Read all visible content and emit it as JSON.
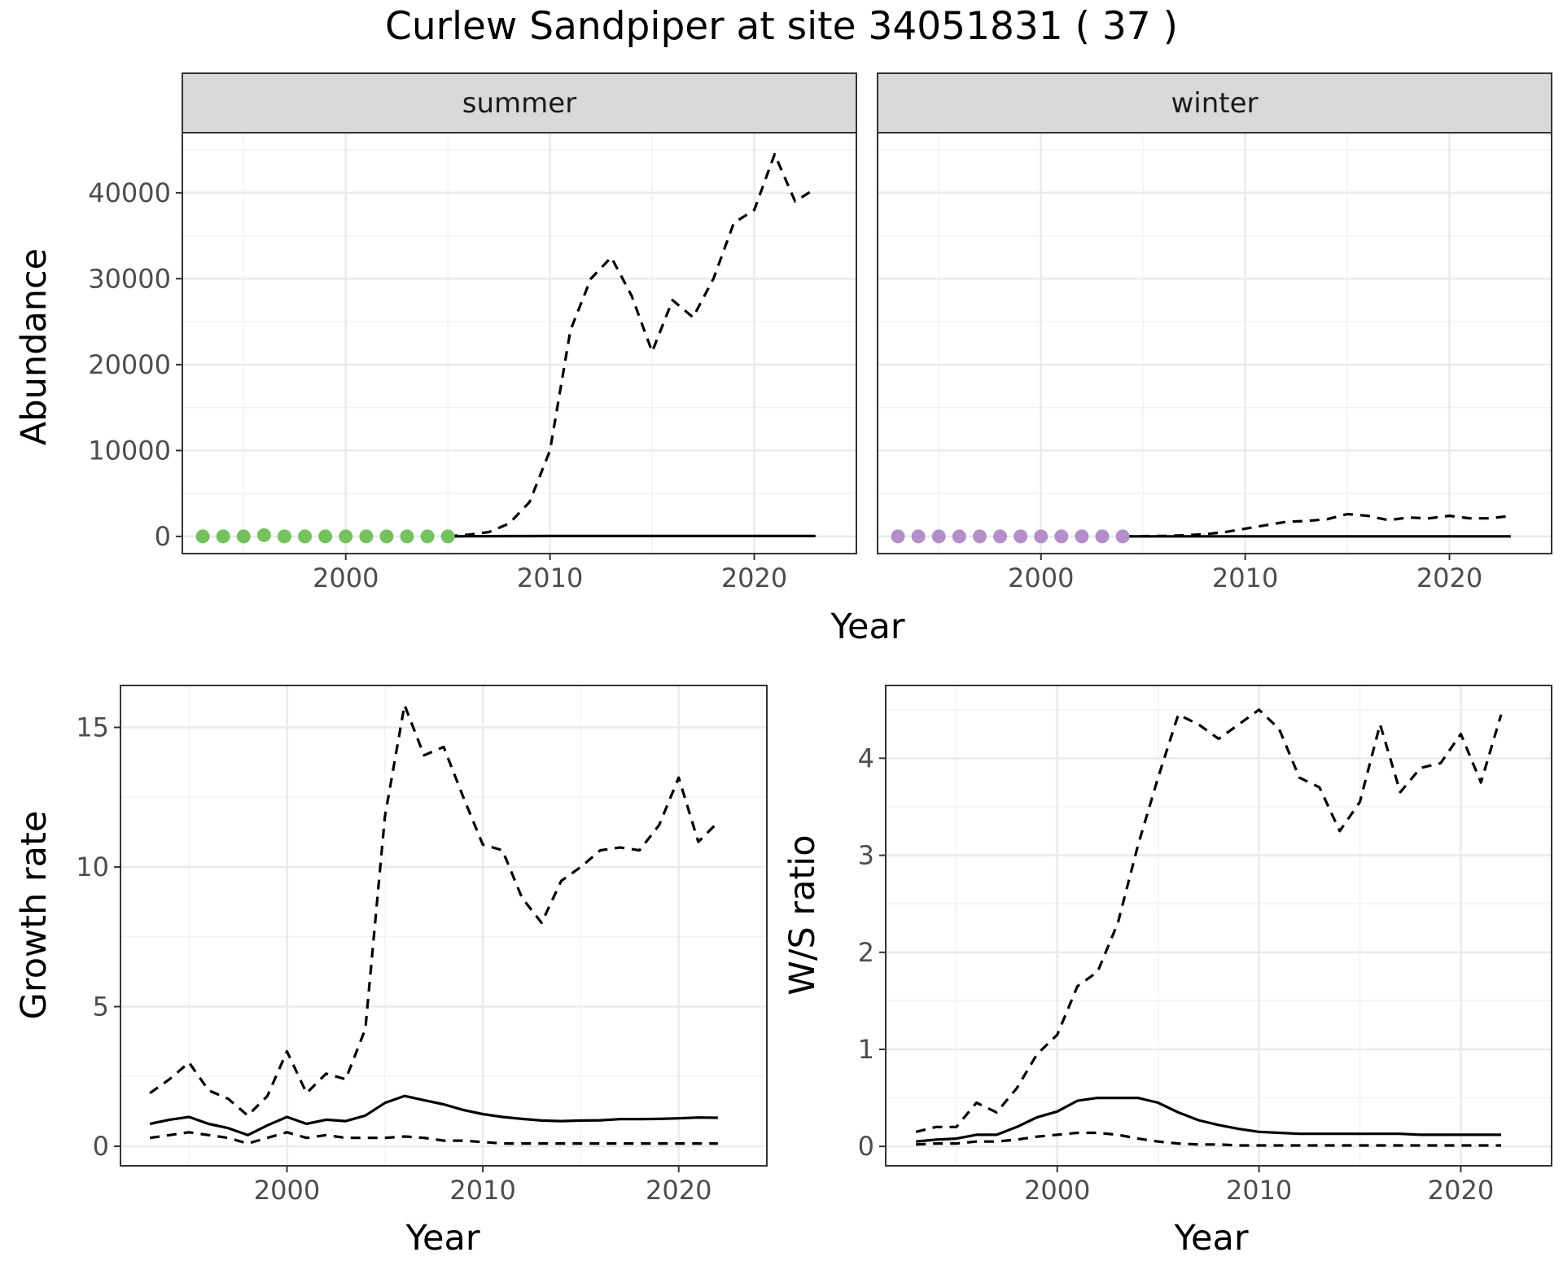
{
  "figure": {
    "title": "Curlew Sandpiper at site 34051831 ( 37 )"
  },
  "colors": {
    "summer_points": "#74c15e",
    "winter_points": "#b48ec8",
    "line": "#000000",
    "grid_major": "#ebebeb",
    "grid_minor": "#f2f2f2",
    "strip_fill": "#d9d9d9",
    "panel_border": "#333333"
  },
  "chart_data": [
    {
      "id": "abundance",
      "type": "line",
      "facets": [
        "summer",
        "winter"
      ],
      "xlabel": "Year",
      "ylabel": "Abundance",
      "xlim": [
        1992,
        2025
      ],
      "ylim": [
        -2000,
        47000
      ],
      "xticks": [
        2000,
        2010,
        2020
      ],
      "yticks": [
        0,
        10000,
        20000,
        30000,
        40000
      ],
      "grid": true,
      "panels": [
        {
          "facet": "summer",
          "points": {
            "x": [
              1993,
              1994,
              1995,
              1996,
              1997,
              1998,
              1999,
              2000,
              2001,
              2002,
              2003,
              2004,
              2005
            ],
            "y": [
              0,
              0,
              0,
              150,
              0,
              0,
              0,
              0,
              0,
              0,
              0,
              0,
              0
            ]
          },
          "series": [
            {
              "style": "solid",
              "x": [
                2005,
                2006,
                2007,
                2008,
                2009,
                2010,
                2011,
                2012,
                2013,
                2014,
                2015,
                2016,
                2017,
                2018,
                2019,
                2020,
                2021,
                2022,
                2023
              ],
              "y": [
                0,
                20,
                30,
                40,
                40,
                50,
                50,
                50,
                50,
                50,
                50,
                50,
                50,
                50,
                50,
                50,
                50,
                50,
                50
              ]
            },
            {
              "style": "dashed",
              "x": [
                2005,
                2006,
                2007,
                2008,
                2009,
                2010,
                2011,
                2012,
                2013,
                2014,
                2015,
                2016,
                2017,
                2018,
                2019,
                2020,
                2021,
                2022,
                2023
              ],
              "y": [
                0,
                200,
                500,
                1500,
                4000,
                10000,
                24000,
                30000,
                32500,
                28000,
                21500,
                27500,
                25500,
                30000,
                36500,
                38000,
                44500,
                39000,
                40500
              ]
            }
          ]
        },
        {
          "facet": "winter",
          "points": {
            "x": [
              1993,
              1994,
              1995,
              1996,
              1997,
              1998,
              1999,
              2000,
              2001,
              2002,
              2003,
              2004
            ],
            "y": [
              0,
              0,
              0,
              0,
              0,
              0,
              0,
              0,
              0,
              0,
              0,
              0
            ]
          },
          "series": [
            {
              "style": "solid",
              "x": [
                2004,
                2005,
                2006,
                2007,
                2008,
                2009,
                2010,
                2011,
                2012,
                2013,
                2014,
                2015,
                2016,
                2017,
                2018,
                2019,
                2020,
                2021,
                2022,
                2023
              ],
              "y": [
                0,
                5,
                5,
                5,
                5,
                5,
                5,
                5,
                5,
                5,
                5,
                5,
                5,
                5,
                5,
                5,
                5,
                5,
                5,
                5
              ]
            },
            {
              "style": "dashed",
              "x": [
                2004,
                2005,
                2006,
                2007,
                2008,
                2009,
                2010,
                2011,
                2012,
                2013,
                2014,
                2015,
                2016,
                2017,
                2018,
                2019,
                2020,
                2021,
                2022,
                2023
              ],
              "y": [
                0,
                30,
                60,
                120,
                250,
                500,
                900,
                1300,
                1700,
                1800,
                2000,
                2600,
                2400,
                1900,
                2200,
                2100,
                2400,
                2100,
                2100,
                2400
              ]
            }
          ]
        }
      ]
    },
    {
      "id": "growth_rate",
      "type": "line",
      "xlabel": "Year",
      "ylabel": "Growth rate",
      "xlim": [
        1991.5,
        2024.5
      ],
      "ylim": [
        -0.7,
        16.5
      ],
      "xticks": [
        2000,
        2010,
        2020
      ],
      "yticks": [
        0,
        5,
        10,
        15
      ],
      "grid": true,
      "series": [
        {
          "style": "solid",
          "x": [
            1993,
            1994,
            1995,
            1996,
            1997,
            1998,
            1999,
            2000,
            2001,
            2002,
            2003,
            2004,
            2005,
            2006,
            2007,
            2008,
            2009,
            2010,
            2011,
            2012,
            2013,
            2014,
            2015,
            2016,
            2017,
            2018,
            2019,
            2020,
            2021,
            2022
          ],
          "y": [
            0.8,
            0.95,
            1.05,
            0.8,
            0.65,
            0.4,
            0.75,
            1.05,
            0.8,
            0.95,
            0.9,
            1.1,
            1.55,
            1.8,
            1.65,
            1.5,
            1.3,
            1.15,
            1.05,
            0.98,
            0.92,
            0.9,
            0.92,
            0.93,
            0.97,
            0.97,
            0.98,
            1.0,
            1.03,
            1.02
          ]
        },
        {
          "style": "dashed",
          "x": [
            1993,
            1994,
            1995,
            1996,
            1997,
            1998,
            1999,
            2000,
            2001,
            2002,
            2003,
            2004,
            2005,
            2006,
            2007,
            2008,
            2009,
            2010,
            2011,
            2012,
            2013,
            2014,
            2015,
            2016,
            2017,
            2018,
            2019,
            2020,
            2021,
            2022
          ],
          "y": [
            1.9,
            2.4,
            3.0,
            2.0,
            1.7,
            1.1,
            1.8,
            3.4,
            1.9,
            2.6,
            2.4,
            4.2,
            11.8,
            15.8,
            14.0,
            14.3,
            12.5,
            10.8,
            10.6,
            8.9,
            8.0,
            9.5,
            10.0,
            10.6,
            10.7,
            10.6,
            11.5,
            13.2,
            10.9,
            11.6
          ]
        },
        {
          "style": "dashed",
          "x": [
            1993,
            1994,
            1995,
            1996,
            1997,
            1998,
            1999,
            2000,
            2001,
            2002,
            2003,
            2004,
            2005,
            2006,
            2007,
            2008,
            2009,
            2010,
            2011,
            2012,
            2013,
            2014,
            2015,
            2016,
            2017,
            2018,
            2019,
            2020,
            2021,
            2022
          ],
          "y": [
            0.3,
            0.4,
            0.5,
            0.4,
            0.3,
            0.1,
            0.3,
            0.5,
            0.3,
            0.4,
            0.3,
            0.3,
            0.3,
            0.35,
            0.3,
            0.2,
            0.2,
            0.15,
            0.1,
            0.1,
            0.1,
            0.1,
            0.1,
            0.1,
            0.1,
            0.1,
            0.1,
            0.1,
            0.1,
            0.1
          ]
        }
      ]
    },
    {
      "id": "ws_ratio",
      "type": "line",
      "xlabel": "Year",
      "ylabel": "W/S ratio",
      "xlim": [
        1991.5,
        2024.5
      ],
      "ylim": [
        -0.2,
        4.75
      ],
      "xticks": [
        2000,
        2010,
        2020
      ],
      "yticks": [
        0,
        1,
        2,
        3,
        4
      ],
      "grid": true,
      "series": [
        {
          "style": "solid",
          "x": [
            1993,
            1994,
            1995,
            1996,
            1997,
            1998,
            1999,
            2000,
            2001,
            2002,
            2003,
            2004,
            2005,
            2006,
            2007,
            2008,
            2009,
            2010,
            2011,
            2012,
            2013,
            2014,
            2015,
            2016,
            2017,
            2018,
            2019,
            2020,
            2021,
            2022
          ],
          "y": [
            0.05,
            0.07,
            0.08,
            0.12,
            0.12,
            0.2,
            0.3,
            0.36,
            0.47,
            0.5,
            0.5,
            0.5,
            0.45,
            0.35,
            0.27,
            0.22,
            0.18,
            0.15,
            0.14,
            0.13,
            0.13,
            0.13,
            0.13,
            0.13,
            0.13,
            0.12,
            0.12,
            0.12,
            0.12,
            0.12
          ]
        },
        {
          "style": "dashed",
          "x": [
            1993,
            1994,
            1995,
            1996,
            1997,
            1998,
            1999,
            2000,
            2001,
            2002,
            2003,
            2004,
            2005,
            2006,
            2007,
            2008,
            2009,
            2010,
            2011,
            2012,
            2013,
            2014,
            2015,
            2016,
            2017,
            2018,
            2019,
            2020,
            2021,
            2022
          ],
          "y": [
            0.15,
            0.2,
            0.2,
            0.45,
            0.35,
            0.6,
            0.95,
            1.15,
            1.65,
            1.8,
            2.3,
            3.1,
            3.8,
            4.45,
            4.35,
            4.2,
            4.35,
            4.5,
            4.3,
            3.8,
            3.7,
            3.25,
            3.55,
            4.35,
            3.65,
            3.9,
            3.95,
            4.25,
            3.75,
            4.45
          ]
        },
        {
          "style": "dashed",
          "x": [
            1993,
            1994,
            1995,
            1996,
            1997,
            1998,
            1999,
            2000,
            2001,
            2002,
            2003,
            2004,
            2005,
            2006,
            2007,
            2008,
            2009,
            2010,
            2011,
            2012,
            2013,
            2014,
            2015,
            2016,
            2017,
            2018,
            2019,
            2020,
            2021,
            2022
          ],
          "y": [
            0.02,
            0.03,
            0.03,
            0.05,
            0.05,
            0.07,
            0.1,
            0.12,
            0.14,
            0.14,
            0.12,
            0.08,
            0.05,
            0.03,
            0.02,
            0.02,
            0.01,
            0.01,
            0.01,
            0.01,
            0.01,
            0.01,
            0.01,
            0.01,
            0.01,
            0.01,
            0.01,
            0.01,
            0.01,
            0.01
          ]
        }
      ]
    }
  ]
}
